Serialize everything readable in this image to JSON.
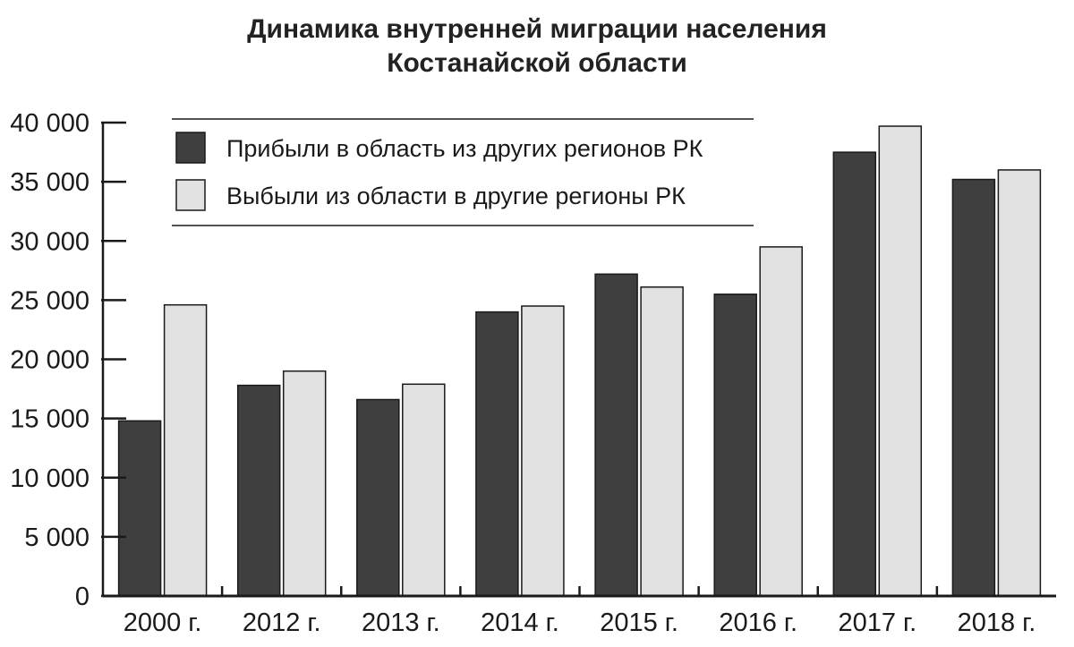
{
  "chart_data": {
    "type": "bar",
    "title": [
      "Динамика внутренней миграции населения",
      "Костанайской области"
    ],
    "xlabel": "",
    "ylabel": "",
    "categories": [
      "2000 г.",
      "2012 г.",
      "2013 г.",
      "2014 г.",
      "2015 г.",
      "2016 г.",
      "2017 г.",
      "2018 г."
    ],
    "series": [
      {
        "name": "Прибыли в область из других регионов РК",
        "color": "#3f3f3f",
        "values": [
          14800,
          17800,
          16600,
          24000,
          27200,
          25500,
          37500,
          35200
        ]
      },
      {
        "name": "Выбыли из области в другие регионы РК",
        "color": "#e1e1e1",
        "values": [
          24600,
          19000,
          17900,
          24500,
          26100,
          29500,
          39700,
          36000
        ]
      }
    ],
    "ylim": [
      0,
      40000
    ],
    "yticks": [
      0,
      5000,
      10000,
      15000,
      20000,
      25000,
      30000,
      35000,
      40000
    ],
    "ytick_labels": [
      "0",
      "5 000",
      "10 000",
      "15 000",
      "20 000",
      "25 000",
      "30 000",
      "35 000",
      "40 000"
    ],
    "grid": false,
    "legend_position": "top-left"
  }
}
